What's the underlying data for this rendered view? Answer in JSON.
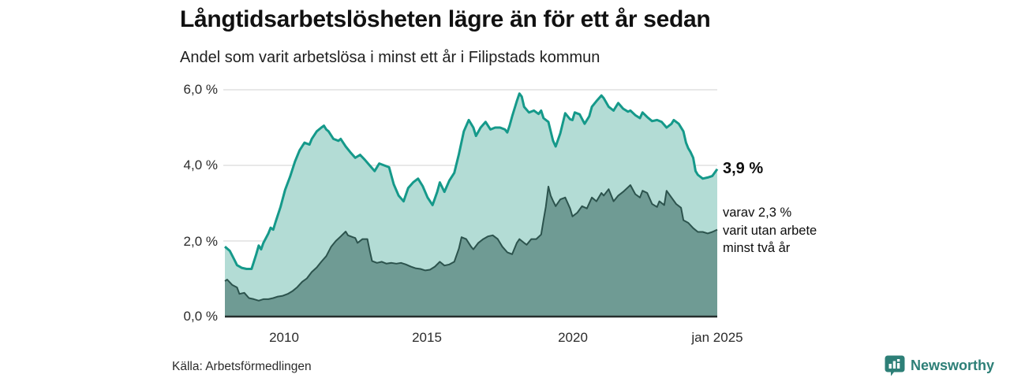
{
  "title": "Långtidsarbetslösheten lägre än för ett år sedan",
  "subtitle": "Andel som varit arbetslösa i minst ett år i Filipstads kommun",
  "source": "Källa: Arbetsförmedlingen",
  "branding": {
    "name": "Newsworthy",
    "logo_icon": "bar-chart-speech-bubble-icon",
    "color": "#2d7f77"
  },
  "annotations": {
    "latest_total": "3,9 %",
    "secondary_line1": "varav 2,3 %",
    "secondary_line2": "varit utan arbete",
    "secondary_line3": "minst två år"
  },
  "colors": {
    "series1_line": "#15998a",
    "series1_fill": "#b3dcd5",
    "series2_line": "#2c534d",
    "series2_fill": "#6f9b94",
    "grid": "#d9d9d9",
    "baseline": "#252e2d",
    "background": "#ffffff"
  },
  "chart_data": {
    "type": "area",
    "title": "Långtidsarbetslösheten lägre än för ett år sedan",
    "subtitle": "Andel som varit arbetslösa i minst ett år i Filipstads kommun",
    "x_range_years": [
      2008,
      2025
    ],
    "ylim": [
      0,
      6
    ],
    "grid": "horizontal",
    "legend": "none",
    "y_axis": {
      "unit": "%",
      "ticks": [
        {
          "label": "6,0 %",
          "value": 6
        },
        {
          "label": "4,0 %",
          "value": 4
        },
        {
          "label": "2,0 %",
          "value": 2
        },
        {
          "label": "0,0 %",
          "value": 0
        }
      ]
    },
    "x_axis": {
      "ticks": [
        {
          "label": "2010",
          "year": 2010
        },
        {
          "label": "2015",
          "year": 2015
        },
        {
          "label": "2020",
          "year": 2020
        },
        {
          "label": "jan 2025",
          "year": 2025
        }
      ]
    },
    "series": [
      {
        "name": "Andel arbetslösa minst ett år",
        "latest_value_label": "3,9 %",
        "latest_value": 3.9,
        "line_color": "#15998a",
        "fill_color": "#b3dcd5",
        "points": [
          [
            2008.0,
            1.85
          ],
          [
            2008.17,
            1.74
          ],
          [
            2008.33,
            1.5
          ],
          [
            2008.42,
            1.36
          ],
          [
            2008.58,
            1.29
          ],
          [
            2008.75,
            1.26
          ],
          [
            2008.92,
            1.26
          ],
          [
            2009.0,
            1.45
          ],
          [
            2009.08,
            1.64
          ],
          [
            2009.17,
            1.88
          ],
          [
            2009.25,
            1.78
          ],
          [
            2009.33,
            1.95
          ],
          [
            2009.5,
            2.2
          ],
          [
            2009.58,
            2.35
          ],
          [
            2009.67,
            2.3
          ],
          [
            2009.75,
            2.5
          ],
          [
            2009.92,
            2.9
          ],
          [
            2010.08,
            3.35
          ],
          [
            2010.25,
            3.7
          ],
          [
            2010.42,
            4.1
          ],
          [
            2010.58,
            4.4
          ],
          [
            2010.75,
            4.6
          ],
          [
            2010.92,
            4.55
          ],
          [
            2011.0,
            4.7
          ],
          [
            2011.17,
            4.9
          ],
          [
            2011.33,
            5.0
          ],
          [
            2011.42,
            5.05
          ],
          [
            2011.5,
            4.95
          ],
          [
            2011.58,
            4.9
          ],
          [
            2011.75,
            4.7
          ],
          [
            2011.92,
            4.65
          ],
          [
            2012.0,
            4.7
          ],
          [
            2012.17,
            4.5
          ],
          [
            2012.33,
            4.35
          ],
          [
            2012.5,
            4.2
          ],
          [
            2012.67,
            4.28
          ],
          [
            2012.83,
            4.15
          ],
          [
            2013.0,
            4.0
          ],
          [
            2013.17,
            3.85
          ],
          [
            2013.33,
            4.05
          ],
          [
            2013.5,
            4.0
          ],
          [
            2013.67,
            3.95
          ],
          [
            2013.83,
            3.5
          ],
          [
            2014.0,
            3.2
          ],
          [
            2014.17,
            3.05
          ],
          [
            2014.33,
            3.4
          ],
          [
            2014.5,
            3.55
          ],
          [
            2014.67,
            3.65
          ],
          [
            2014.83,
            3.45
          ],
          [
            2015.0,
            3.15
          ],
          [
            2015.17,
            2.95
          ],
          [
            2015.33,
            3.3
          ],
          [
            2015.42,
            3.55
          ],
          [
            2015.58,
            3.3
          ],
          [
            2015.75,
            3.6
          ],
          [
            2015.92,
            3.8
          ],
          [
            2016.08,
            4.3
          ],
          [
            2016.25,
            4.9
          ],
          [
            2016.42,
            5.2
          ],
          [
            2016.58,
            5.0
          ],
          [
            2016.67,
            4.78
          ],
          [
            2016.83,
            5.0
          ],
          [
            2017.0,
            5.15
          ],
          [
            2017.17,
            4.95
          ],
          [
            2017.33,
            5.0
          ],
          [
            2017.5,
            5.0
          ],
          [
            2017.67,
            4.95
          ],
          [
            2017.75,
            4.87
          ],
          [
            2017.83,
            5.05
          ],
          [
            2017.92,
            5.3
          ],
          [
            2018.08,
            5.7
          ],
          [
            2018.17,
            5.9
          ],
          [
            2018.25,
            5.82
          ],
          [
            2018.33,
            5.55
          ],
          [
            2018.5,
            5.4
          ],
          [
            2018.67,
            5.45
          ],
          [
            2018.83,
            5.36
          ],
          [
            2018.92,
            5.45
          ],
          [
            2019.0,
            5.25
          ],
          [
            2019.17,
            5.15
          ],
          [
            2019.33,
            4.65
          ],
          [
            2019.42,
            4.5
          ],
          [
            2019.58,
            4.85
          ],
          [
            2019.75,
            5.38
          ],
          [
            2019.92,
            5.22
          ],
          [
            2020.0,
            5.2
          ],
          [
            2020.08,
            5.4
          ],
          [
            2020.25,
            5.35
          ],
          [
            2020.42,
            5.1
          ],
          [
            2020.58,
            5.3
          ],
          [
            2020.67,
            5.55
          ],
          [
            2020.83,
            5.7
          ],
          [
            2021.0,
            5.85
          ],
          [
            2021.08,
            5.78
          ],
          [
            2021.25,
            5.55
          ],
          [
            2021.42,
            5.45
          ],
          [
            2021.58,
            5.65
          ],
          [
            2021.75,
            5.5
          ],
          [
            2021.92,
            5.42
          ],
          [
            2022.0,
            5.45
          ],
          [
            2022.17,
            5.33
          ],
          [
            2022.33,
            5.25
          ],
          [
            2022.42,
            5.4
          ],
          [
            2022.58,
            5.28
          ],
          [
            2022.75,
            5.17
          ],
          [
            2022.92,
            5.2
          ],
          [
            2023.08,
            5.15
          ],
          [
            2023.25,
            5.0
          ],
          [
            2023.42,
            5.1
          ],
          [
            2023.5,
            5.2
          ],
          [
            2023.67,
            5.1
          ],
          [
            2023.83,
            4.9
          ],
          [
            2023.92,
            4.6
          ],
          [
            2024.0,
            4.45
          ],
          [
            2024.08,
            4.35
          ],
          [
            2024.17,
            4.2
          ],
          [
            2024.25,
            3.85
          ],
          [
            2024.33,
            3.75
          ],
          [
            2024.5,
            3.65
          ],
          [
            2024.67,
            3.68
          ],
          [
            2024.83,
            3.72
          ],
          [
            2025.0,
            3.9
          ]
        ]
      },
      {
        "name": "varav arbetslösa minst två år",
        "latest_value_label": "2,3 %",
        "latest_value": 2.3,
        "line_color": "#2c534d",
        "fill_color": "#6f9b94",
        "points": [
          [
            2008.0,
            0.94
          ],
          [
            2008.08,
            0.98
          ],
          [
            2008.25,
            0.84
          ],
          [
            2008.42,
            0.77
          ],
          [
            2008.5,
            0.6
          ],
          [
            2008.67,
            0.63
          ],
          [
            2008.83,
            0.49
          ],
          [
            2009.0,
            0.46
          ],
          [
            2009.17,
            0.42
          ],
          [
            2009.33,
            0.46
          ],
          [
            2009.5,
            0.46
          ],
          [
            2009.67,
            0.49
          ],
          [
            2009.83,
            0.53
          ],
          [
            2010.0,
            0.55
          ],
          [
            2010.17,
            0.6
          ],
          [
            2010.33,
            0.67
          ],
          [
            2010.5,
            0.78
          ],
          [
            2010.67,
            0.92
          ],
          [
            2010.83,
            1.01
          ],
          [
            2011.0,
            1.18
          ],
          [
            2011.17,
            1.3
          ],
          [
            2011.33,
            1.45
          ],
          [
            2011.5,
            1.6
          ],
          [
            2011.67,
            1.85
          ],
          [
            2011.83,
            2.0
          ],
          [
            2012.0,
            2.12
          ],
          [
            2012.17,
            2.25
          ],
          [
            2012.25,
            2.15
          ],
          [
            2012.42,
            2.1
          ],
          [
            2012.5,
            2.08
          ],
          [
            2012.58,
            1.95
          ],
          [
            2012.75,
            2.05
          ],
          [
            2012.92,
            2.05
          ],
          [
            2013.0,
            1.75
          ],
          [
            2013.08,
            1.47
          ],
          [
            2013.25,
            1.42
          ],
          [
            2013.42,
            1.45
          ],
          [
            2013.58,
            1.4
          ],
          [
            2013.75,
            1.42
          ],
          [
            2013.92,
            1.4
          ],
          [
            2014.08,
            1.42
          ],
          [
            2014.25,
            1.38
          ],
          [
            2014.42,
            1.32
          ],
          [
            2014.58,
            1.28
          ],
          [
            2014.75,
            1.26
          ],
          [
            2014.92,
            1.22
          ],
          [
            2015.08,
            1.24
          ],
          [
            2015.25,
            1.32
          ],
          [
            2015.42,
            1.45
          ],
          [
            2015.58,
            1.35
          ],
          [
            2015.75,
            1.38
          ],
          [
            2015.92,
            1.45
          ],
          [
            2016.08,
            1.8
          ],
          [
            2016.17,
            2.1
          ],
          [
            2016.33,
            2.05
          ],
          [
            2016.5,
            1.85
          ],
          [
            2016.58,
            1.78
          ],
          [
            2016.75,
            1.95
          ],
          [
            2016.92,
            2.05
          ],
          [
            2017.08,
            2.12
          ],
          [
            2017.25,
            2.15
          ],
          [
            2017.42,
            2.05
          ],
          [
            2017.58,
            1.85
          ],
          [
            2017.75,
            1.7
          ],
          [
            2017.92,
            1.65
          ],
          [
            2018.08,
            1.95
          ],
          [
            2018.17,
            2.05
          ],
          [
            2018.33,
            1.95
          ],
          [
            2018.42,
            1.9
          ],
          [
            2018.58,
            2.05
          ],
          [
            2018.75,
            2.05
          ],
          [
            2018.92,
            2.17
          ],
          [
            2019.0,
            2.55
          ],
          [
            2019.08,
            2.9
          ],
          [
            2019.17,
            3.44
          ],
          [
            2019.25,
            3.2
          ],
          [
            2019.33,
            3.06
          ],
          [
            2019.42,
            2.92
          ],
          [
            2019.58,
            3.1
          ],
          [
            2019.75,
            3.15
          ],
          [
            2019.92,
            2.86
          ],
          [
            2020.0,
            2.65
          ],
          [
            2020.17,
            2.75
          ],
          [
            2020.33,
            2.92
          ],
          [
            2020.5,
            2.86
          ],
          [
            2020.67,
            3.15
          ],
          [
            2020.83,
            3.05
          ],
          [
            2021.0,
            3.27
          ],
          [
            2021.08,
            3.2
          ],
          [
            2021.25,
            3.37
          ],
          [
            2021.42,
            3.05
          ],
          [
            2021.58,
            3.2
          ],
          [
            2021.75,
            3.3
          ],
          [
            2021.92,
            3.42
          ],
          [
            2022.0,
            3.48
          ],
          [
            2022.17,
            3.24
          ],
          [
            2022.33,
            3.15
          ],
          [
            2022.42,
            3.33
          ],
          [
            2022.58,
            3.27
          ],
          [
            2022.75,
            2.98
          ],
          [
            2022.92,
            2.9
          ],
          [
            2023.0,
            3.05
          ],
          [
            2023.17,
            2.95
          ],
          [
            2023.25,
            3.33
          ],
          [
            2023.42,
            3.15
          ],
          [
            2023.58,
            2.98
          ],
          [
            2023.75,
            2.88
          ],
          [
            2023.83,
            2.55
          ],
          [
            2024.0,
            2.48
          ],
          [
            2024.17,
            2.34
          ],
          [
            2024.33,
            2.24
          ],
          [
            2024.5,
            2.24
          ],
          [
            2024.67,
            2.2
          ],
          [
            2024.83,
            2.24
          ],
          [
            2025.0,
            2.3
          ]
        ]
      }
    ]
  }
}
